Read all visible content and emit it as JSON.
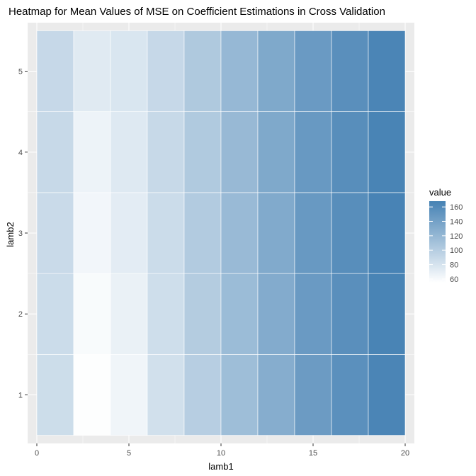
{
  "chart_data": {
    "type": "heatmap",
    "title": "Heatmap for Mean Values of MSE on Coefficient Estimations in Cross Validation",
    "xlabel": "lamb1",
    "ylabel": "lamb2",
    "x_ticks": [
      0,
      5,
      10,
      15,
      20
    ],
    "y_ticks": [
      1,
      2,
      3,
      4,
      5
    ],
    "xlim": [
      -0.5,
      20.5
    ],
    "ylim": [
      0.4,
      5.6
    ],
    "x": [
      1,
      3,
      5,
      7,
      9,
      11,
      13,
      15,
      17,
      19
    ],
    "y": [
      1,
      2,
      3,
      4,
      5
    ],
    "cell_width": 2,
    "cell_height": 1,
    "values": [
      [
        86,
        56,
        64,
        83,
        99,
        114,
        129,
        145,
        155,
        165
      ],
      [
        87,
        59,
        68,
        85,
        101,
        116,
        131,
        146,
        156,
        166
      ],
      [
        88,
        63,
        72,
        87,
        102,
        117,
        132,
        147,
        157,
        167
      ],
      [
        89,
        66,
        75,
        89,
        103,
        118,
        133,
        147,
        157,
        166
      ],
      [
        90,
        74,
        78,
        90,
        104,
        119,
        133,
        146,
        156,
        165
      ]
    ],
    "grid": true,
    "legend": {
      "title": "value",
      "ticks": [
        60,
        80,
        100,
        120,
        140,
        160
      ],
      "range": [
        55,
        168
      ],
      "low_color": "#ffffff",
      "high_color": "#4682b4",
      "placement": "right"
    },
    "colors": {
      "panel_background": "#ebebeb",
      "grid_line": "#ffffff"
    }
  }
}
